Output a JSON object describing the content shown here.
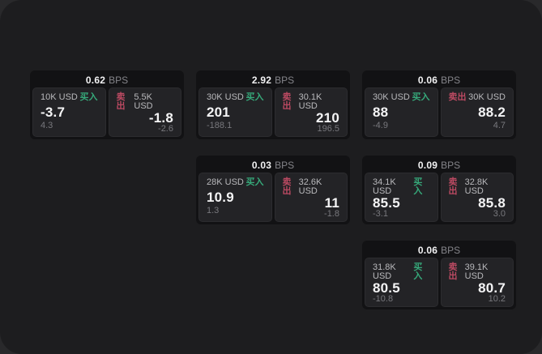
{
  "labels": {
    "bps": "BPS",
    "buy": "买入",
    "sell": "卖出"
  },
  "colors": {
    "buy_green": "#36a97a",
    "sell_red": "#bc4a62",
    "window_bg": "#1d1d1f",
    "card_bg": "#121214",
    "pane_bg": "#232326"
  },
  "cards": [
    {
      "bps": "0.62",
      "buy": {
        "amount": "10K USD",
        "value": "-3.7",
        "delta": "4.3"
      },
      "sell": {
        "amount": "5.5K USD",
        "value": "-1.8",
        "delta": "-2.6"
      }
    },
    {
      "bps": "2.92",
      "buy": {
        "amount": "30K USD",
        "value": "201",
        "delta": "-188.1"
      },
      "sell": {
        "amount": "30.1K USD",
        "value": "210",
        "delta": "196.5"
      }
    },
    {
      "bps": "0.03",
      "buy": {
        "amount": "28K USD",
        "value": "10.9",
        "delta": "1.3"
      },
      "sell": {
        "amount": "32.6K USD",
        "value": "11",
        "delta": "-1.8"
      }
    },
    {
      "bps": "0.06",
      "buy": {
        "amount": "30K USD",
        "value": "88",
        "delta": "-4.9"
      },
      "sell": {
        "amount": "30K USD",
        "value": "88.2",
        "delta": "4.7"
      }
    },
    {
      "bps": "0.09",
      "buy": {
        "amount": "34.1K USD",
        "value": "85.5",
        "delta": "-3.1"
      },
      "sell": {
        "amount": "32.8K USD",
        "value": "85.8",
        "delta": "3.0"
      }
    },
    {
      "bps": "0.06",
      "buy": {
        "amount": "31.8K USD",
        "value": "80.5",
        "delta": "-10.8"
      },
      "sell": {
        "amount": "39.1K USD",
        "value": "80.7",
        "delta": "10.2"
      }
    }
  ]
}
